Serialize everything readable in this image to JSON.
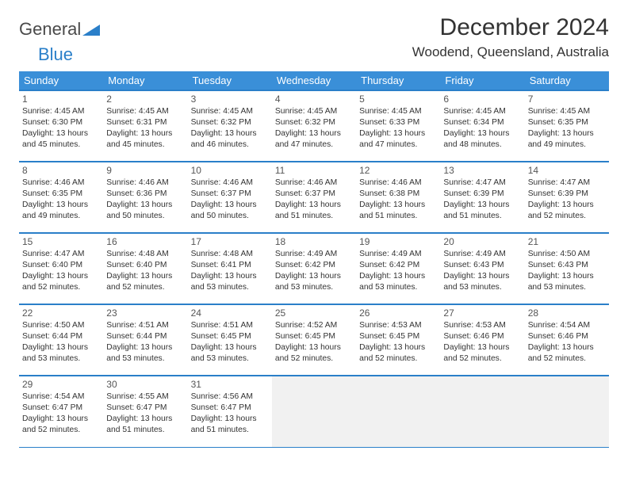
{
  "logo": {
    "text_dark": "General",
    "text_blue": "Blue"
  },
  "header": {
    "month_title": "December 2024",
    "location": "Woodend, Queensland, Australia"
  },
  "day_headers": [
    "Sunday",
    "Monday",
    "Tuesday",
    "Wednesday",
    "Thursday",
    "Friday",
    "Saturday"
  ],
  "colors": {
    "header_bg": "#3a8fd8",
    "header_text": "#ffffff",
    "border": "#2a7fc9",
    "empty_bg": "#f1f1f1",
    "text": "#333333",
    "logo_blue": "#2a7fc9",
    "logo_dark": "#4a4a4a",
    "page_bg": "#ffffff"
  },
  "weeks": [
    [
      {
        "n": "1",
        "sun": "Sunrise: 4:45 AM",
        "set": "Sunset: 6:30 PM",
        "d1": "Daylight: 13 hours",
        "d2": "and 45 minutes."
      },
      {
        "n": "2",
        "sun": "Sunrise: 4:45 AM",
        "set": "Sunset: 6:31 PM",
        "d1": "Daylight: 13 hours",
        "d2": "and 45 minutes."
      },
      {
        "n": "3",
        "sun": "Sunrise: 4:45 AM",
        "set": "Sunset: 6:32 PM",
        "d1": "Daylight: 13 hours",
        "d2": "and 46 minutes."
      },
      {
        "n": "4",
        "sun": "Sunrise: 4:45 AM",
        "set": "Sunset: 6:32 PM",
        "d1": "Daylight: 13 hours",
        "d2": "and 47 minutes."
      },
      {
        "n": "5",
        "sun": "Sunrise: 4:45 AM",
        "set": "Sunset: 6:33 PM",
        "d1": "Daylight: 13 hours",
        "d2": "and 47 minutes."
      },
      {
        "n": "6",
        "sun": "Sunrise: 4:45 AM",
        "set": "Sunset: 6:34 PM",
        "d1": "Daylight: 13 hours",
        "d2": "and 48 minutes."
      },
      {
        "n": "7",
        "sun": "Sunrise: 4:45 AM",
        "set": "Sunset: 6:35 PM",
        "d1": "Daylight: 13 hours",
        "d2": "and 49 minutes."
      }
    ],
    [
      {
        "n": "8",
        "sun": "Sunrise: 4:46 AM",
        "set": "Sunset: 6:35 PM",
        "d1": "Daylight: 13 hours",
        "d2": "and 49 minutes."
      },
      {
        "n": "9",
        "sun": "Sunrise: 4:46 AM",
        "set": "Sunset: 6:36 PM",
        "d1": "Daylight: 13 hours",
        "d2": "and 50 minutes."
      },
      {
        "n": "10",
        "sun": "Sunrise: 4:46 AM",
        "set": "Sunset: 6:37 PM",
        "d1": "Daylight: 13 hours",
        "d2": "and 50 minutes."
      },
      {
        "n": "11",
        "sun": "Sunrise: 4:46 AM",
        "set": "Sunset: 6:37 PM",
        "d1": "Daylight: 13 hours",
        "d2": "and 51 minutes."
      },
      {
        "n": "12",
        "sun": "Sunrise: 4:46 AM",
        "set": "Sunset: 6:38 PM",
        "d1": "Daylight: 13 hours",
        "d2": "and 51 minutes."
      },
      {
        "n": "13",
        "sun": "Sunrise: 4:47 AM",
        "set": "Sunset: 6:39 PM",
        "d1": "Daylight: 13 hours",
        "d2": "and 51 minutes."
      },
      {
        "n": "14",
        "sun": "Sunrise: 4:47 AM",
        "set": "Sunset: 6:39 PM",
        "d1": "Daylight: 13 hours",
        "d2": "and 52 minutes."
      }
    ],
    [
      {
        "n": "15",
        "sun": "Sunrise: 4:47 AM",
        "set": "Sunset: 6:40 PM",
        "d1": "Daylight: 13 hours",
        "d2": "and 52 minutes."
      },
      {
        "n": "16",
        "sun": "Sunrise: 4:48 AM",
        "set": "Sunset: 6:40 PM",
        "d1": "Daylight: 13 hours",
        "d2": "and 52 minutes."
      },
      {
        "n": "17",
        "sun": "Sunrise: 4:48 AM",
        "set": "Sunset: 6:41 PM",
        "d1": "Daylight: 13 hours",
        "d2": "and 53 minutes."
      },
      {
        "n": "18",
        "sun": "Sunrise: 4:49 AM",
        "set": "Sunset: 6:42 PM",
        "d1": "Daylight: 13 hours",
        "d2": "and 53 minutes."
      },
      {
        "n": "19",
        "sun": "Sunrise: 4:49 AM",
        "set": "Sunset: 6:42 PM",
        "d1": "Daylight: 13 hours",
        "d2": "and 53 minutes."
      },
      {
        "n": "20",
        "sun": "Sunrise: 4:49 AM",
        "set": "Sunset: 6:43 PM",
        "d1": "Daylight: 13 hours",
        "d2": "and 53 minutes."
      },
      {
        "n": "21",
        "sun": "Sunrise: 4:50 AM",
        "set": "Sunset: 6:43 PM",
        "d1": "Daylight: 13 hours",
        "d2": "and 53 minutes."
      }
    ],
    [
      {
        "n": "22",
        "sun": "Sunrise: 4:50 AM",
        "set": "Sunset: 6:44 PM",
        "d1": "Daylight: 13 hours",
        "d2": "and 53 minutes."
      },
      {
        "n": "23",
        "sun": "Sunrise: 4:51 AM",
        "set": "Sunset: 6:44 PM",
        "d1": "Daylight: 13 hours",
        "d2": "and 53 minutes."
      },
      {
        "n": "24",
        "sun": "Sunrise: 4:51 AM",
        "set": "Sunset: 6:45 PM",
        "d1": "Daylight: 13 hours",
        "d2": "and 53 minutes."
      },
      {
        "n": "25",
        "sun": "Sunrise: 4:52 AM",
        "set": "Sunset: 6:45 PM",
        "d1": "Daylight: 13 hours",
        "d2": "and 52 minutes."
      },
      {
        "n": "26",
        "sun": "Sunrise: 4:53 AM",
        "set": "Sunset: 6:45 PM",
        "d1": "Daylight: 13 hours",
        "d2": "and 52 minutes."
      },
      {
        "n": "27",
        "sun": "Sunrise: 4:53 AM",
        "set": "Sunset: 6:46 PM",
        "d1": "Daylight: 13 hours",
        "d2": "and 52 minutes."
      },
      {
        "n": "28",
        "sun": "Sunrise: 4:54 AM",
        "set": "Sunset: 6:46 PM",
        "d1": "Daylight: 13 hours",
        "d2": "and 52 minutes."
      }
    ],
    [
      {
        "n": "29",
        "sun": "Sunrise: 4:54 AM",
        "set": "Sunset: 6:47 PM",
        "d1": "Daylight: 13 hours",
        "d2": "and 52 minutes."
      },
      {
        "n": "30",
        "sun": "Sunrise: 4:55 AM",
        "set": "Sunset: 6:47 PM",
        "d1": "Daylight: 13 hours",
        "d2": "and 51 minutes."
      },
      {
        "n": "31",
        "sun": "Sunrise: 4:56 AM",
        "set": "Sunset: 6:47 PM",
        "d1": "Daylight: 13 hours",
        "d2": "and 51 minutes."
      },
      {
        "empty": true
      },
      {
        "empty": true
      },
      {
        "empty": true
      },
      {
        "empty": true
      }
    ]
  ]
}
